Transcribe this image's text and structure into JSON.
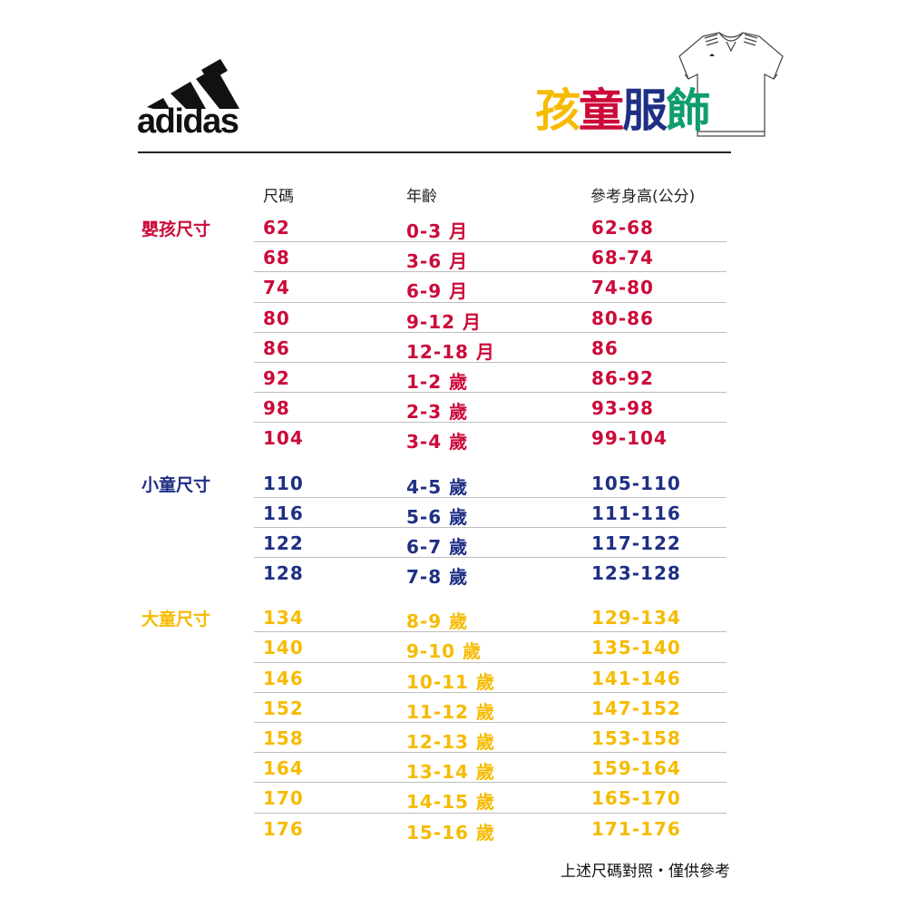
{
  "logo": {
    "text": "adidas"
  },
  "title": {
    "chars": [
      "孩",
      "童",
      "服",
      "飾"
    ],
    "colors": [
      "#f6bb00",
      "#cc0a3a",
      "#1f2f84",
      "#0e9e6b"
    ]
  },
  "headers": {
    "size": "尺碼",
    "age": "年齡",
    "height": "參考身高(公分)"
  },
  "groups": [
    {
      "label": "嬰孩尺寸",
      "color": "#cc0a3a",
      "rows": [
        [
          "62",
          "0-3 月",
          "62-68"
        ],
        [
          "68",
          "3-6 月",
          "68-74"
        ],
        [
          "74",
          "6-9 月",
          "74-80"
        ],
        [
          "80",
          "9-12 月",
          "80-86"
        ],
        [
          "86",
          "12-18 月",
          "86"
        ],
        [
          "92",
          "1-2 歲",
          "86-92"
        ],
        [
          "98",
          "2-3 歲",
          "93-98"
        ],
        [
          "104",
          "3-4 歲",
          "99-104"
        ]
      ]
    },
    {
      "label": "小童尺寸",
      "color": "#1f2f84",
      "rows": [
        [
          "110",
          "4-5 歲",
          "105-110"
        ],
        [
          "116",
          "5-6 歲",
          "111-116"
        ],
        [
          "122",
          "6-7 歲",
          "117-122"
        ],
        [
          "128",
          "7-8 歲",
          "123-128"
        ]
      ]
    },
    {
      "label": "大童尺寸",
      "color": "#f6bb00",
      "rows": [
        [
          "134",
          "8-9 歲",
          "129-134"
        ],
        [
          "140",
          "9-10 歲",
          "135-140"
        ],
        [
          "146",
          "10-11 歲",
          "141-146"
        ],
        [
          "152",
          "11-12 歲",
          "147-152"
        ],
        [
          "158",
          "12-13 歲",
          "153-158"
        ],
        [
          "164",
          "13-14 歲",
          "159-164"
        ],
        [
          "170",
          "14-15 歲",
          "165-170"
        ],
        [
          "176",
          "15-16 歲",
          "171-176"
        ]
      ]
    }
  ],
  "footer": "上述尺碼對照・僅供參考"
}
